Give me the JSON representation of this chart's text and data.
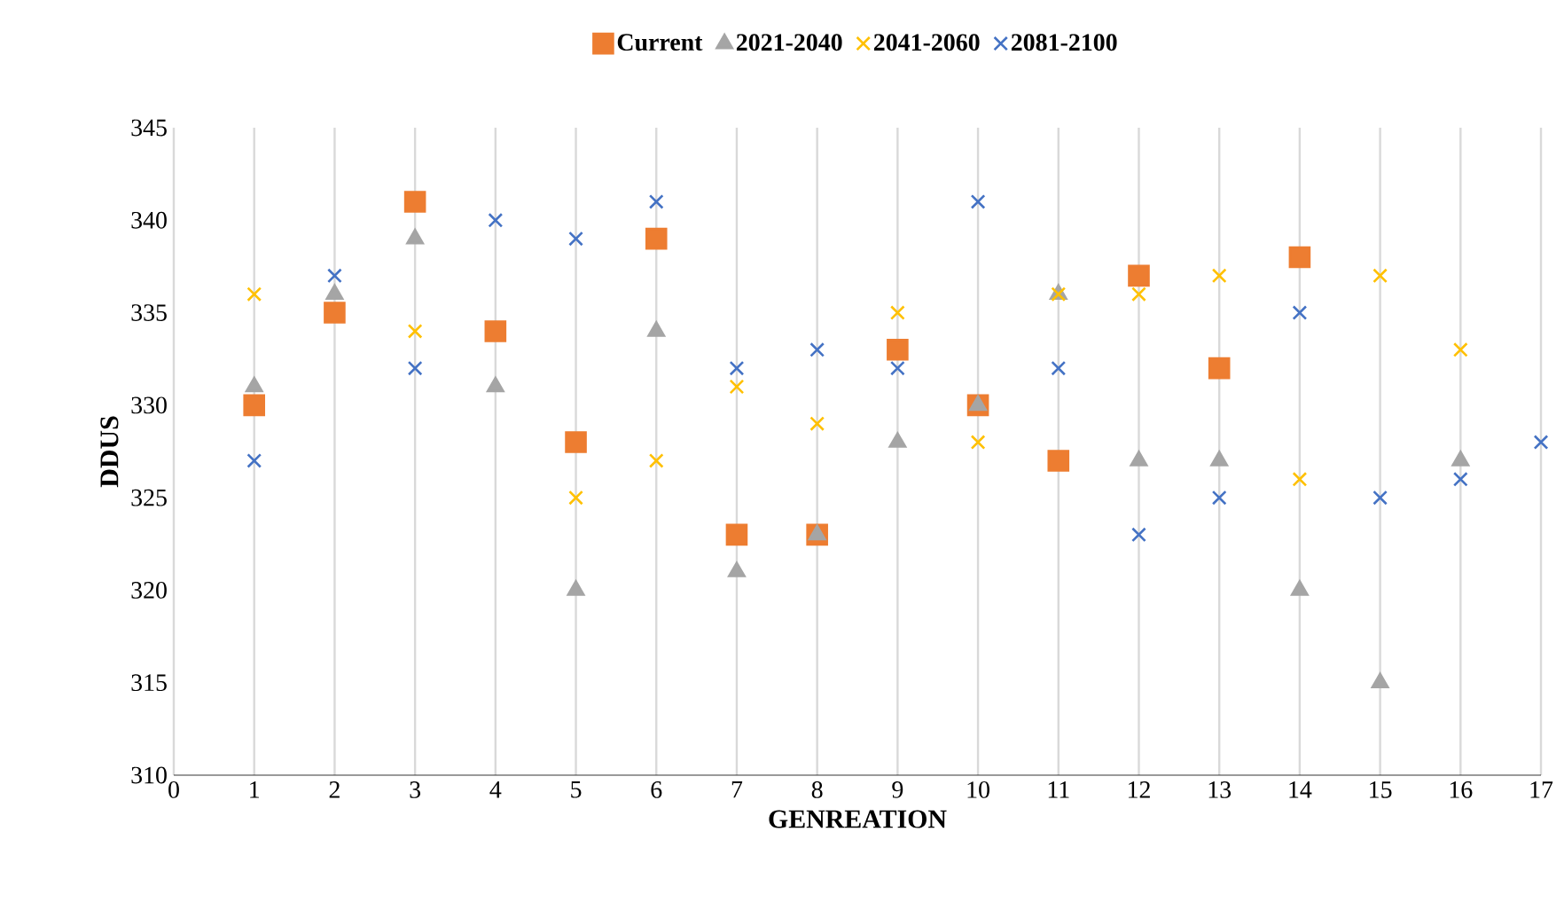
{
  "chart_data": {
    "type": "scatter",
    "xlabel": "GENREATION",
    "ylabel": "DDUS",
    "x": [
      1,
      2,
      3,
      4,
      5,
      6,
      7,
      8,
      9,
      10,
      11,
      12,
      13,
      14,
      15,
      16,
      17
    ],
    "series": [
      {
        "name": "Current",
        "color": "#ed7d31",
        "marker": "square",
        "values": [
          330,
          335,
          341,
          334,
          328,
          339,
          323,
          323,
          333,
          330,
          327,
          337,
          332,
          338,
          null,
          null,
          null
        ]
      },
      {
        "name": "2021-2040",
        "color": "#a5a5a5",
        "marker": "triangle",
        "values": [
          331,
          336,
          339,
          331,
          320,
          334,
          321,
          323,
          328,
          330,
          336,
          327,
          327,
          320,
          315,
          327,
          null
        ]
      },
      {
        "name": "2041-2060",
        "color": "#ffc000",
        "marker": "cross",
        "values": [
          336,
          null,
          334,
          null,
          325,
          327,
          331,
          329,
          335,
          328,
          336,
          336,
          337,
          326,
          337,
          333,
          null
        ]
      },
      {
        "name": "2081-2100",
        "color": "#4472c4",
        "marker": "cross",
        "values": [
          327,
          337,
          332,
          340,
          339,
          341,
          332,
          333,
          332,
          341,
          332,
          323,
          325,
          335,
          325,
          326,
          328
        ]
      }
    ],
    "xlim": [
      0,
      17
    ],
    "xticks": [
      0,
      1,
      2,
      3,
      4,
      5,
      6,
      7,
      8,
      9,
      10,
      11,
      12,
      13,
      14,
      15,
      16,
      17
    ],
    "ylim": [
      310,
      345
    ],
    "yticks": [
      310,
      315,
      320,
      325,
      330,
      335,
      340,
      345
    ],
    "grid": "x",
    "legend": "top"
  }
}
